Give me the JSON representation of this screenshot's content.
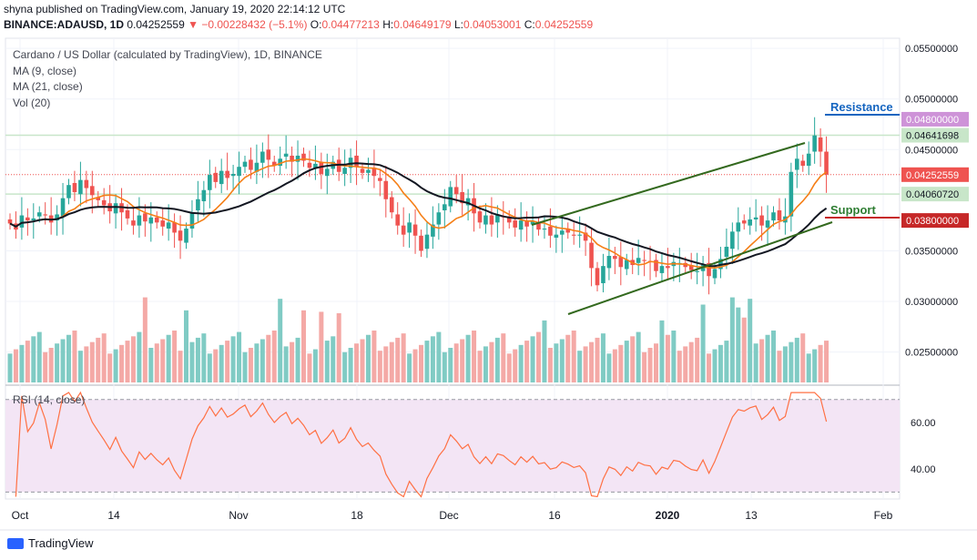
{
  "header": {
    "published_line": "shyna published on TradingView.com, January 19, 2020 22:14:12 UTC",
    "pair": "BINANCE:ADAUSD, 1D",
    "last": "0.04252559",
    "change_arrow": "▼",
    "change": "−0.00228432 (−5.1%)",
    "open_label": "O:",
    "open": "0.04477213",
    "high_label": "H:",
    "high": "0.04649179",
    "low_label": "L:",
    "low": "0.04053001",
    "close_label": "C:",
    "close": "0.04252559"
  },
  "legend": {
    "title": "Cardano / US Dollar (calculated by TradingView), 1D, BINANCE",
    "ma9": "MA (9, close)",
    "ma21": "MA (21, close)",
    "vol": "Vol (20)",
    "rsi": "RSI (14, close)"
  },
  "annotations": {
    "resistance": "Resistance",
    "support": "Support"
  },
  "branding": {
    "name": "TradingView"
  },
  "colors": {
    "up": "#26a69a",
    "down": "#ef5350",
    "ma9": "#f57f17",
    "ma21": "#131722",
    "trend": "#33691e",
    "resistance_text": "#1565c0",
    "support_text": "#2e7d32",
    "rsi_line": "#ff7043",
    "rsi_band": "#f3e5f5"
  },
  "chart_data": [
    {
      "type": "candlestick",
      "title": "Cardano / US Dollar (calculated by TradingView), 1D, BINANCE",
      "ylim": [
        0.022,
        0.056
      ],
      "y_ticks": [
        "0.05500000",
        "0.05000000",
        "0.04500000",
        "0.03500000",
        "0.03000000",
        "0.02500000"
      ],
      "x_ticks": [
        "Oct",
        "14",
        "Nov",
        "18",
        "Dec",
        "16",
        "2020",
        "13",
        "Feb"
      ],
      "price_labels": [
        {
          "text": "0.04800000",
          "value": 0.048,
          "color": "#ce93d8"
        },
        {
          "text": "0.04641698",
          "value": 0.04641698,
          "color": "#c8e6c9"
        },
        {
          "text": "0.04252559",
          "value": 0.04252559,
          "color": "#ef5350"
        },
        {
          "text": "0.04060720",
          "value": 0.0406072,
          "color": "#c8e6c9"
        },
        {
          "text": "0.03800000",
          "value": 0.038,
          "color": "#c62828"
        }
      ],
      "closes": [
        0.0377,
        0.0371,
        0.0385,
        0.038,
        0.0382,
        0.0388,
        0.0385,
        0.0378,
        0.0386,
        0.0402,
        0.0415,
        0.0408,
        0.042,
        0.0412,
        0.0405,
        0.04,
        0.0395,
        0.0389,
        0.0397,
        0.0388,
        0.0382,
        0.0375,
        0.0385,
        0.0379,
        0.0383,
        0.0378,
        0.0374,
        0.0378,
        0.0368,
        0.036,
        0.0372,
        0.0388,
        0.0401,
        0.041,
        0.0425,
        0.0418,
        0.0429,
        0.0422,
        0.0426,
        0.0433,
        0.0438,
        0.043,
        0.0437,
        0.0448,
        0.044,
        0.0434,
        0.0441,
        0.0446,
        0.0438,
        0.0444,
        0.0439,
        0.0432,
        0.0436,
        0.0426,
        0.0431,
        0.0438,
        0.0428,
        0.0432,
        0.0442,
        0.0433,
        0.0427,
        0.043,
        0.0424,
        0.0419,
        0.0401,
        0.0388,
        0.0375,
        0.0366,
        0.0378,
        0.0365,
        0.035,
        0.0366,
        0.0376,
        0.0388,
        0.0396,
        0.0413,
        0.0406,
        0.0397,
        0.0402,
        0.0387,
        0.0378,
        0.0385,
        0.0376,
        0.0386,
        0.0384,
        0.0378,
        0.0373,
        0.038,
        0.0374,
        0.0379,
        0.0371,
        0.0372,
        0.0365,
        0.0366,
        0.037,
        0.0368,
        0.0365,
        0.0366,
        0.036,
        0.0333,
        0.0316,
        0.0335,
        0.0345,
        0.0342,
        0.0334,
        0.0341,
        0.0336,
        0.0343,
        0.034,
        0.0339,
        0.033,
        0.0335,
        0.0333,
        0.0339,
        0.0338,
        0.0334,
        0.0331,
        0.033,
        0.0336,
        0.0325,
        0.0332,
        0.0342,
        0.0354,
        0.0369,
        0.0378,
        0.0377,
        0.0381,
        0.0383,
        0.0375,
        0.038,
        0.0388,
        0.038,
        0.0384,
        0.0428,
        0.0441,
        0.0434,
        0.0446,
        0.0464,
        0.0448,
        0.04252559
      ],
      "volume_ylim": [
        0,
        60
      ],
      "volume_heavy_index": [
        23,
        30,
        46,
        50,
        53,
        56,
        91,
        111,
        118,
        123,
        124,
        125,
        126
      ],
      "rsi": {
        "ylim": [
          27,
          75
        ],
        "bands": [
          30,
          70
        ],
        "y_ticks": [
          "60.00",
          "40.00"
        ]
      }
    }
  ]
}
